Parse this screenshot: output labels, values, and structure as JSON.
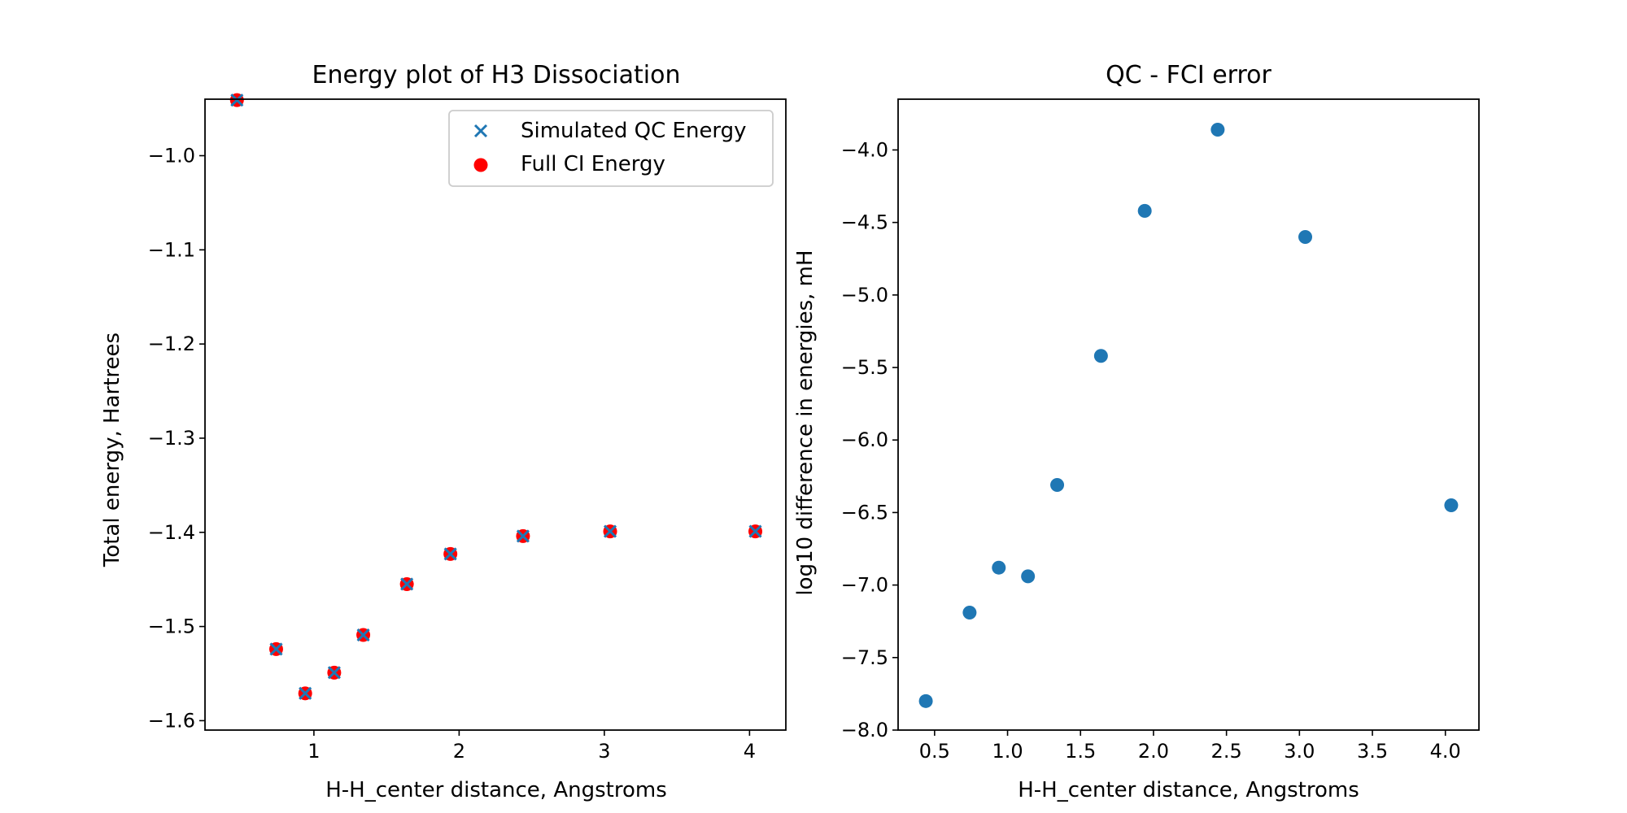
{
  "chart_data": [
    {
      "type": "scatter",
      "title": "Energy plot of H3 Dissociation",
      "xlabel": "H-H_center distance, Angstroms",
      "ylabel": "Total energy, Hartrees",
      "xlim": [
        0.25,
        4.25
      ],
      "ylim": [
        -1.61,
        -0.94
      ],
      "xticks": [
        1,
        2,
        3,
        4
      ],
      "xtick_labels": [
        "1",
        "2",
        "3",
        "4"
      ],
      "yticks": [
        -1.6,
        -1.5,
        -1.4,
        -1.3,
        -1.2,
        -1.1,
        -1.0
      ],
      "ytick_labels": [
        "−1.6",
        "−1.5",
        "−1.4",
        "−1.3",
        "−1.2",
        "−1.1",
        "−1.0"
      ],
      "legend_position": "top-right",
      "series": [
        {
          "name": "Simulated QC Energy",
          "marker": "x",
          "color": "#1f77b4",
          "x": [
            0.47,
            0.74,
            0.94,
            1.14,
            1.34,
            1.64,
            1.94,
            2.44,
            3.04,
            4.04
          ],
          "y": [
            -0.941,
            -1.524,
            -1.571,
            -1.549,
            -1.509,
            -1.455,
            -1.423,
            -1.404,
            -1.399,
            -1.399
          ]
        },
        {
          "name": "Full CI Energy",
          "marker": "o",
          "color": "#ff0000",
          "x": [
            0.47,
            0.74,
            0.94,
            1.14,
            1.34,
            1.64,
            1.94,
            2.44,
            3.04,
            4.04
          ],
          "y": [
            -0.941,
            -1.524,
            -1.571,
            -1.549,
            -1.509,
            -1.455,
            -1.423,
            -1.404,
            -1.399,
            -1.399
          ]
        }
      ]
    },
    {
      "type": "scatter",
      "title": "QC - FCI error",
      "xlabel": "H-H_center distance, Angstroms",
      "ylabel": "log10 difference in energies, mH",
      "xlim": [
        0.25,
        4.23
      ],
      "ylim": [
        -8.0,
        -3.65
      ],
      "xticks": [
        0.5,
        1.0,
        1.5,
        2.0,
        2.5,
        3.0,
        3.5,
        4.0
      ],
      "xtick_labels": [
        "0.5",
        "1.0",
        "1.5",
        "2.0",
        "2.5",
        "3.0",
        "3.5",
        "4.0"
      ],
      "yticks": [
        -8.0,
        -7.5,
        -7.0,
        -6.5,
        -6.0,
        -5.5,
        -5.0,
        -4.5,
        -4.0
      ],
      "ytick_labels": [
        "−8.0",
        "−7.5",
        "−7.0",
        "−6.5",
        "−6.0",
        "−5.5",
        "−5.0",
        "−4.5",
        "−4.0"
      ],
      "series": [
        {
          "marker": "o",
          "color": "#1f77b4",
          "x": [
            0.44,
            0.74,
            0.94,
            1.14,
            1.34,
            1.64,
            1.94,
            2.44,
            3.04,
            4.04
          ],
          "y": [
            -7.8,
            -7.19,
            -6.88,
            -6.94,
            -6.31,
            -5.42,
            -4.42,
            -3.86,
            -4.6,
            -6.45
          ]
        }
      ]
    }
  ]
}
